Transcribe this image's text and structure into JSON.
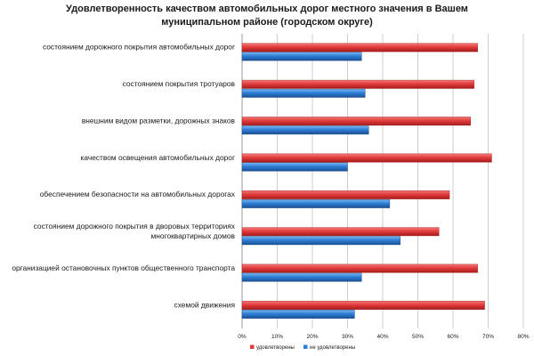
{
  "chart_data": {
    "type": "bar",
    "orientation": "horizontal",
    "title_lines": [
      "Удовлетворенность качеством автомобильных дорог местного значения в Вашем",
      "муниципальном районе (городском округе)"
    ],
    "categories": [
      [
        "состоянием дорожного покрытия автомобильных дорог"
      ],
      [
        "состоянием покрытия тротуаров"
      ],
      [
        "внешним видом разметки, дорожных знаков"
      ],
      [
        "качеством освещения автомобильных дорог"
      ],
      [
        "обеспечением безопасности  на автомобильных дорогах"
      ],
      [
        "состоянием дорожного покрытия в дворовых территориях",
        "многоквартирных домов"
      ],
      [
        "организацией остановочных пунктов общественного транспорта"
      ],
      [
        "схемой движения"
      ]
    ],
    "series": [
      {
        "name": "удовлетворены",
        "color": "#e23b3b",
        "values": [
          67,
          66,
          65,
          71,
          59,
          56,
          67,
          69
        ]
      },
      {
        "name": "не удовлетворены",
        "color": "#2f7fd6",
        "values": [
          34,
          35,
          36,
          30,
          42,
          45,
          34,
          32
        ]
      }
    ],
    "x_ticks": [
      "0%",
      "10%",
      "20%",
      "30%",
      "40%",
      "50%",
      "60%",
      "70%",
      "80%"
    ],
    "xlim": [
      0,
      80
    ],
    "grid": true,
    "legend_position": "bottom"
  }
}
